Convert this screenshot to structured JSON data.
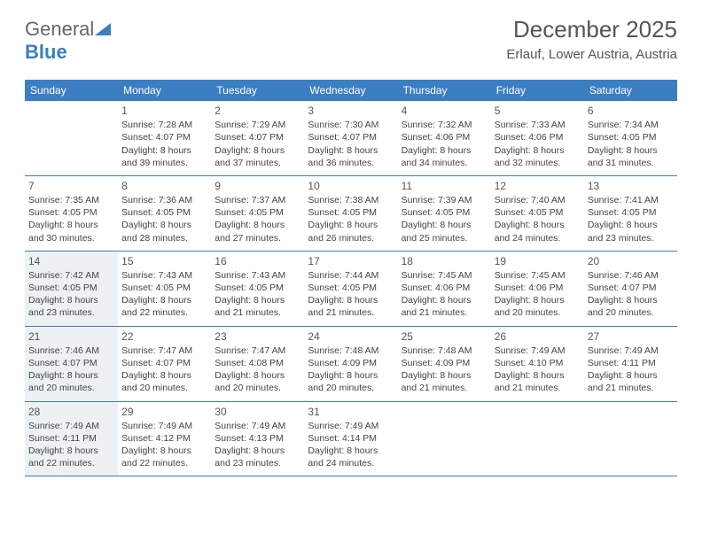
{
  "logo": {
    "part1": "General",
    "part2": "Blue"
  },
  "header": {
    "title": "December 2025",
    "location": "Erlauf, Lower Austria, Austria"
  },
  "colors": {
    "header_bg": "#3b7ec2",
    "header_text": "#ffffff",
    "border": "#3b7ec2",
    "shaded_bg": "#eef1f4",
    "text": "#444444"
  },
  "dayNames": [
    "Sunday",
    "Monday",
    "Tuesday",
    "Wednesday",
    "Thursday",
    "Friday",
    "Saturday"
  ],
  "weeks": [
    [
      {
        "empty": true
      },
      {
        "day": "1",
        "sunrise": "Sunrise: 7:28 AM",
        "sunset": "Sunset: 4:07 PM",
        "daylight": "Daylight: 8 hours and 39 minutes."
      },
      {
        "day": "2",
        "sunrise": "Sunrise: 7:29 AM",
        "sunset": "Sunset: 4:07 PM",
        "daylight": "Daylight: 8 hours and 37 minutes."
      },
      {
        "day": "3",
        "sunrise": "Sunrise: 7:30 AM",
        "sunset": "Sunset: 4:07 PM",
        "daylight": "Daylight: 8 hours and 36 minutes."
      },
      {
        "day": "4",
        "sunrise": "Sunrise: 7:32 AM",
        "sunset": "Sunset: 4:06 PM",
        "daylight": "Daylight: 8 hours and 34 minutes."
      },
      {
        "day": "5",
        "sunrise": "Sunrise: 7:33 AM",
        "sunset": "Sunset: 4:06 PM",
        "daylight": "Daylight: 8 hours and 32 minutes."
      },
      {
        "day": "6",
        "sunrise": "Sunrise: 7:34 AM",
        "sunset": "Sunset: 4:05 PM",
        "daylight": "Daylight: 8 hours and 31 minutes."
      }
    ],
    [
      {
        "day": "7",
        "sunrise": "Sunrise: 7:35 AM",
        "sunset": "Sunset: 4:05 PM",
        "daylight": "Daylight: 8 hours and 30 minutes."
      },
      {
        "day": "8",
        "sunrise": "Sunrise: 7:36 AM",
        "sunset": "Sunset: 4:05 PM",
        "daylight": "Daylight: 8 hours and 28 minutes."
      },
      {
        "day": "9",
        "sunrise": "Sunrise: 7:37 AM",
        "sunset": "Sunset: 4:05 PM",
        "daylight": "Daylight: 8 hours and 27 minutes."
      },
      {
        "day": "10",
        "sunrise": "Sunrise: 7:38 AM",
        "sunset": "Sunset: 4:05 PM",
        "daylight": "Daylight: 8 hours and 26 minutes."
      },
      {
        "day": "11",
        "sunrise": "Sunrise: 7:39 AM",
        "sunset": "Sunset: 4:05 PM",
        "daylight": "Daylight: 8 hours and 25 minutes."
      },
      {
        "day": "12",
        "sunrise": "Sunrise: 7:40 AM",
        "sunset": "Sunset: 4:05 PM",
        "daylight": "Daylight: 8 hours and 24 minutes."
      },
      {
        "day": "13",
        "sunrise": "Sunrise: 7:41 AM",
        "sunset": "Sunset: 4:05 PM",
        "daylight": "Daylight: 8 hours and 23 minutes."
      }
    ],
    [
      {
        "day": "14",
        "shaded": true,
        "sunrise": "Sunrise: 7:42 AM",
        "sunset": "Sunset: 4:05 PM",
        "daylight": "Daylight: 8 hours and 23 minutes."
      },
      {
        "day": "15",
        "sunrise": "Sunrise: 7:43 AM",
        "sunset": "Sunset: 4:05 PM",
        "daylight": "Daylight: 8 hours and 22 minutes."
      },
      {
        "day": "16",
        "sunrise": "Sunrise: 7:43 AM",
        "sunset": "Sunset: 4:05 PM",
        "daylight": "Daylight: 8 hours and 21 minutes."
      },
      {
        "day": "17",
        "sunrise": "Sunrise: 7:44 AM",
        "sunset": "Sunset: 4:05 PM",
        "daylight": "Daylight: 8 hours and 21 minutes."
      },
      {
        "day": "18",
        "sunrise": "Sunrise: 7:45 AM",
        "sunset": "Sunset: 4:06 PM",
        "daylight": "Daylight: 8 hours and 21 minutes."
      },
      {
        "day": "19",
        "sunrise": "Sunrise: 7:45 AM",
        "sunset": "Sunset: 4:06 PM",
        "daylight": "Daylight: 8 hours and 20 minutes."
      },
      {
        "day": "20",
        "sunrise": "Sunrise: 7:46 AM",
        "sunset": "Sunset: 4:07 PM",
        "daylight": "Daylight: 8 hours and 20 minutes."
      }
    ],
    [
      {
        "day": "21",
        "shaded": true,
        "sunrise": "Sunrise: 7:46 AM",
        "sunset": "Sunset: 4:07 PM",
        "daylight": "Daylight: 8 hours and 20 minutes."
      },
      {
        "day": "22",
        "sunrise": "Sunrise: 7:47 AM",
        "sunset": "Sunset: 4:07 PM",
        "daylight": "Daylight: 8 hours and 20 minutes."
      },
      {
        "day": "23",
        "sunrise": "Sunrise: 7:47 AM",
        "sunset": "Sunset: 4:08 PM",
        "daylight": "Daylight: 8 hours and 20 minutes."
      },
      {
        "day": "24",
        "sunrise": "Sunrise: 7:48 AM",
        "sunset": "Sunset: 4:09 PM",
        "daylight": "Daylight: 8 hours and 20 minutes."
      },
      {
        "day": "25",
        "sunrise": "Sunrise: 7:48 AM",
        "sunset": "Sunset: 4:09 PM",
        "daylight": "Daylight: 8 hours and 21 minutes."
      },
      {
        "day": "26",
        "sunrise": "Sunrise: 7:49 AM",
        "sunset": "Sunset: 4:10 PM",
        "daylight": "Daylight: 8 hours and 21 minutes."
      },
      {
        "day": "27",
        "sunrise": "Sunrise: 7:49 AM",
        "sunset": "Sunset: 4:11 PM",
        "daylight": "Daylight: 8 hours and 21 minutes."
      }
    ],
    [
      {
        "day": "28",
        "shaded": true,
        "sunrise": "Sunrise: 7:49 AM",
        "sunset": "Sunset: 4:11 PM",
        "daylight": "Daylight: 8 hours and 22 minutes."
      },
      {
        "day": "29",
        "sunrise": "Sunrise: 7:49 AM",
        "sunset": "Sunset: 4:12 PM",
        "daylight": "Daylight: 8 hours and 22 minutes."
      },
      {
        "day": "30",
        "sunrise": "Sunrise: 7:49 AM",
        "sunset": "Sunset: 4:13 PM",
        "daylight": "Daylight: 8 hours and 23 minutes."
      },
      {
        "day": "31",
        "sunrise": "Sunrise: 7:49 AM",
        "sunset": "Sunset: 4:14 PM",
        "daylight": "Daylight: 8 hours and 24 minutes."
      },
      {
        "empty": true
      },
      {
        "empty": true
      },
      {
        "empty": true
      }
    ]
  ]
}
